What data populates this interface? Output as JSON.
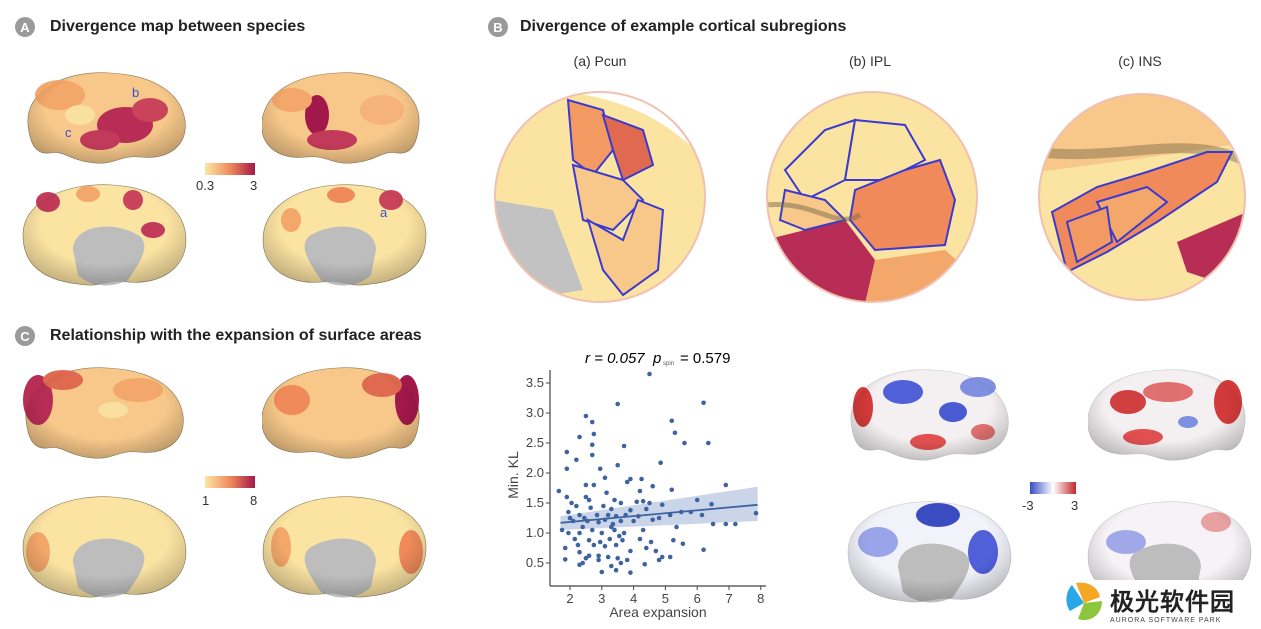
{
  "panels": {
    "A": {
      "badge": "A",
      "title": "Divergence map between species",
      "region_labels": [
        "b",
        "c",
        "a"
      ],
      "colorbar": {
        "min": "0.3",
        "max": "3",
        "colors": [
          "#fbe7a6",
          "#f08a5b",
          "#a3184a"
        ]
      }
    },
    "B": {
      "badge": "B",
      "title": "Divergence of example cortical subregions",
      "subregions": [
        "(a) Pcun",
        "(b) IPL",
        "(c) INS"
      ]
    },
    "C": {
      "badge": "C",
      "title": "Relationship with the expansion of surface areas",
      "colorbar": {
        "min": "1",
        "max": "8",
        "colors": [
          "#fbe7a6",
          "#f08a5b",
          "#a3184a"
        ]
      },
      "diverging_colorbar": {
        "min": "-3",
        "max": "3",
        "colors": [
          "#3b4cc0",
          "#ffffff",
          "#c0282d"
        ]
      }
    }
  },
  "chart_data": {
    "type": "scatter",
    "annotation_r": "r = 0.057",
    "annotation_p_label": "p",
    "annotation_p_sub": "spin",
    "annotation_p_value": "= 0.579",
    "xlabel": "Area expansion",
    "ylabel": "Min. KL",
    "xlim": [
      1.5,
      8.2
    ],
    "ylim": [
      0.3,
      3.75
    ],
    "xticks": [
      "2",
      "3",
      "4",
      "5",
      "6",
      "7",
      "8"
    ],
    "yticks": [
      "0.5",
      "1.0",
      "1.5",
      "2.0",
      "2.5",
      "3.0",
      "3.5"
    ],
    "point_color": "#3e64a0",
    "fit": {
      "x": [
        1.7,
        7.9
      ],
      "y": [
        1.17,
        1.47
      ],
      "ci_low": [
        1.05,
        1.2
      ],
      "ci_high": [
        1.28,
        1.77
      ]
    },
    "points": [
      [
        4.5,
        3.65
      ],
      [
        3.5,
        3.15
      ],
      [
        6.2,
        3.17
      ],
      [
        2.5,
        2.95
      ],
      [
        2.7,
        2.85
      ],
      [
        2.75,
        2.65
      ],
      [
        2.3,
        2.6
      ],
      [
        5.2,
        2.87
      ],
      [
        5.3,
        2.67
      ],
      [
        5.6,
        2.5
      ],
      [
        6.35,
        2.5
      ],
      [
        2.7,
        2.47
      ],
      [
        3.7,
        2.45
      ],
      [
        1.9,
        2.35
      ],
      [
        2.7,
        2.3
      ],
      [
        2.2,
        2.22
      ],
      [
        3.5,
        2.13
      ],
      [
        4.85,
        2.17
      ],
      [
        1.9,
        2.07
      ],
      [
        2.95,
        2.07
      ],
      [
        3.1,
        1.92
      ],
      [
        3.9,
        1.9
      ],
      [
        4.25,
        1.9
      ],
      [
        3.8,
        1.85
      ],
      [
        2.5,
        1.8
      ],
      [
        2.75,
        1.8
      ],
      [
        4.6,
        1.78
      ],
      [
        6.9,
        1.8
      ],
      [
        1.65,
        1.7
      ],
      [
        3.15,
        1.67
      ],
      [
        4.2,
        1.7
      ],
      [
        5.2,
        1.72
      ],
      [
        2.5,
        1.6
      ],
      [
        2.6,
        1.55
      ],
      [
        1.9,
        1.6
      ],
      [
        2.05,
        1.5
      ],
      [
        3.4,
        1.55
      ],
      [
        3.6,
        1.5
      ],
      [
        4.1,
        1.52
      ],
      [
        4.3,
        1.53
      ],
      [
        4.5,
        1.5
      ],
      [
        4.9,
        1.47
      ],
      [
        6.0,
        1.55
      ],
      [
        6.45,
        1.48
      ],
      [
        2.2,
        1.45
      ],
      [
        2.65,
        1.42
      ],
      [
        3.05,
        1.45
      ],
      [
        3.3,
        1.4
      ],
      [
        3.9,
        1.38
      ],
      [
        4.4,
        1.4
      ],
      [
        1.95,
        1.35
      ],
      [
        2.3,
        1.3
      ],
      [
        2.45,
        1.25
      ],
      [
        2.85,
        1.3
      ],
      [
        3.2,
        1.3
      ],
      [
        3.45,
        1.28
      ],
      [
        3.75,
        1.3
      ],
      [
        4.15,
        1.28
      ],
      [
        5.15,
        1.3
      ],
      [
        5.5,
        1.35
      ],
      [
        5.8,
        1.35
      ],
      [
        6.15,
        1.3
      ],
      [
        7.85,
        1.33
      ],
      [
        2.1,
        1.2
      ],
      [
        2.55,
        1.2
      ],
      [
        2.9,
        1.18
      ],
      [
        3.1,
        1.22
      ],
      [
        3.35,
        1.15
      ],
      [
        3.6,
        1.2
      ],
      [
        4.0,
        1.2
      ],
      [
        4.6,
        1.22
      ],
      [
        5.35,
        1.1
      ],
      [
        6.5,
        1.15
      ],
      [
        6.9,
        1.15
      ],
      [
        7.2,
        1.15
      ],
      [
        1.75,
        1.05
      ],
      [
        1.95,
        1.0
      ],
      [
        2.3,
        1.0
      ],
      [
        2.7,
        1.05
      ],
      [
        3.0,
        1.0
      ],
      [
        3.4,
        1.05
      ],
      [
        3.7,
        1.0
      ],
      [
        4.3,
        1.05
      ],
      [
        2.15,
        0.9
      ],
      [
        2.6,
        0.88
      ],
      [
        2.95,
        0.85
      ],
      [
        3.25,
        0.9
      ],
      [
        3.65,
        0.88
      ],
      [
        4.2,
        0.9
      ],
      [
        4.55,
        0.85
      ],
      [
        5.25,
        0.88
      ],
      [
        5.55,
        0.82
      ],
      [
        2.25,
        0.8
      ],
      [
        2.75,
        0.8
      ],
      [
        3.1,
        0.78
      ],
      [
        3.45,
        0.8
      ],
      [
        3.9,
        0.7
      ],
      [
        4.4,
        0.75
      ],
      [
        4.7,
        0.7
      ],
      [
        6.2,
        0.72
      ],
      [
        1.85,
        0.75
      ],
      [
        2.3,
        0.68
      ],
      [
        2.6,
        0.62
      ],
      [
        3.2,
        0.6
      ],
      [
        3.5,
        0.58
      ],
      [
        3.8,
        0.55
      ],
      [
        4.9,
        0.6
      ],
      [
        5.15,
        0.6
      ],
      [
        1.85,
        0.56
      ],
      [
        2.4,
        0.5
      ],
      [
        2.5,
        0.58
      ],
      [
        2.9,
        0.55
      ],
      [
        3.3,
        0.45
      ],
      [
        3.6,
        0.5
      ],
      [
        4.35,
        0.48
      ],
      [
        4.8,
        0.55
      ],
      [
        2.3,
        0.47
      ],
      [
        3.0,
        0.35
      ],
      [
        3.45,
        0.38
      ],
      [
        3.9,
        0.34
      ],
      [
        2.9,
        0.62
      ],
      [
        3.55,
        0.95
      ],
      [
        2.4,
        1.1
      ],
      [
        3.3,
        1.1
      ],
      [
        2.0,
        1.25
      ],
      [
        4.8,
        1.25
      ]
    ]
  },
  "watermark": {
    "name": "极光软件园",
    "sub": "AURORA SOFTWARE PARK"
  }
}
